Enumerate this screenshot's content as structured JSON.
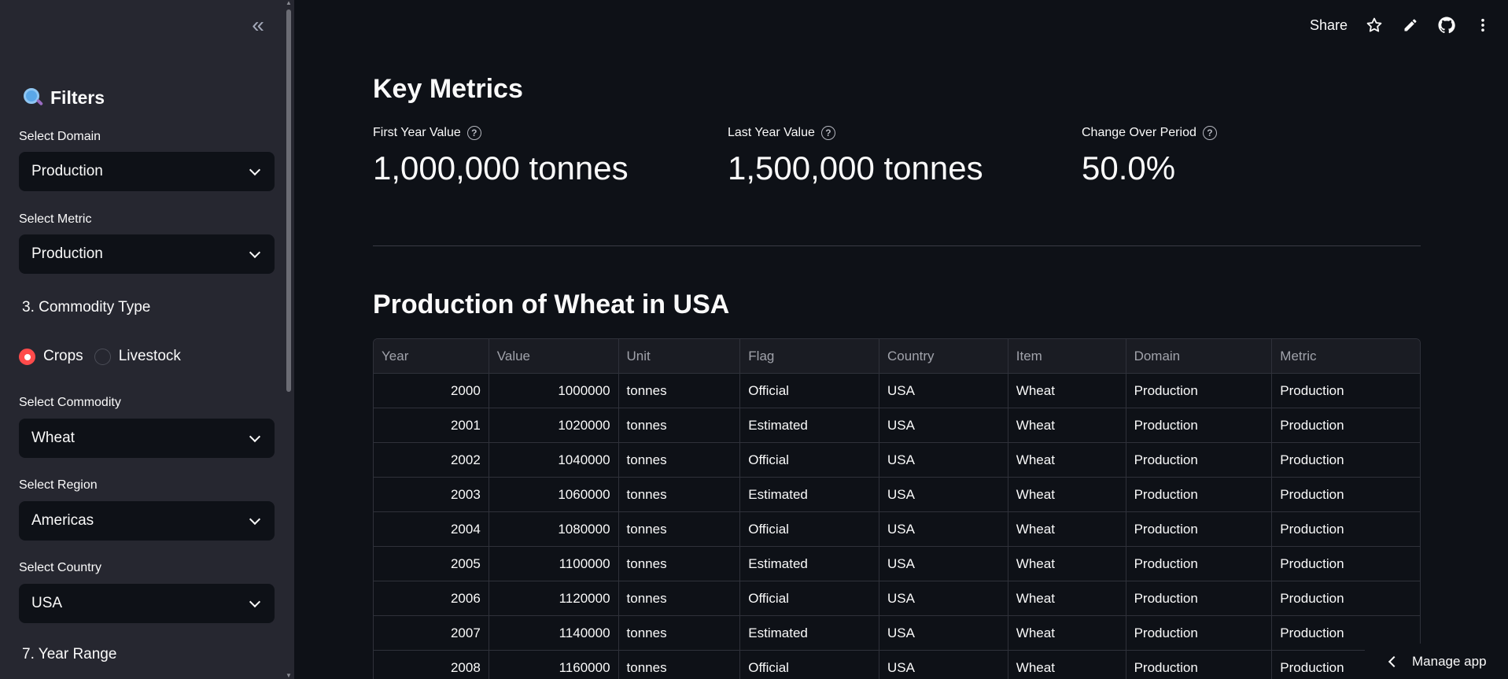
{
  "sidebar": {
    "collapse_glyph": "«",
    "title": "Filters",
    "title_icon": "magnifying-glass-icon",
    "domain": {
      "label": "Select Domain",
      "value": "Production"
    },
    "metric": {
      "label": "Select Metric",
      "value": "Production"
    },
    "commodity_type": {
      "label": "3.  Commodity Type",
      "options": [
        "Crops",
        "Livestock"
      ],
      "selected": "Crops"
    },
    "commodity": {
      "label": "Select Commodity",
      "value": "Wheat"
    },
    "region": {
      "label": "Select Region",
      "value": "Americas"
    },
    "country": {
      "label": "Select Country",
      "value": "USA"
    },
    "year_range": {
      "label": "7.  Year Range"
    }
  },
  "toolbar": {
    "share_label": "Share",
    "icons": [
      "star-icon",
      "pencil-icon",
      "github-icon",
      "more-vertical-icon"
    ]
  },
  "main": {
    "key_metrics_title": "Key Metrics",
    "metrics": [
      {
        "label": "First Year Value",
        "value": "1,000,000 tonnes"
      },
      {
        "label": "Last Year Value",
        "value": "1,500,000 tonnes"
      },
      {
        "label": "Change Over Period",
        "value": "50.0%"
      }
    ],
    "table_title": "Production of Wheat in USA",
    "table": {
      "columns": [
        "Year",
        "Value",
        "Unit",
        "Flag",
        "Country",
        "Item",
        "Domain",
        "Metric"
      ],
      "rows": [
        [
          "2000",
          "1000000",
          "tonnes",
          "Official",
          "USA",
          "Wheat",
          "Production",
          "Production"
        ],
        [
          "2001",
          "1020000",
          "tonnes",
          "Estimated",
          "USA",
          "Wheat",
          "Production",
          "Production"
        ],
        [
          "2002",
          "1040000",
          "tonnes",
          "Official",
          "USA",
          "Wheat",
          "Production",
          "Production"
        ],
        [
          "2003",
          "1060000",
          "tonnes",
          "Estimated",
          "USA",
          "Wheat",
          "Production",
          "Production"
        ],
        [
          "2004",
          "1080000",
          "tonnes",
          "Official",
          "USA",
          "Wheat",
          "Production",
          "Production"
        ],
        [
          "2005",
          "1100000",
          "tonnes",
          "Estimated",
          "USA",
          "Wheat",
          "Production",
          "Production"
        ],
        [
          "2006",
          "1120000",
          "tonnes",
          "Official",
          "USA",
          "Wheat",
          "Production",
          "Production"
        ],
        [
          "2007",
          "1140000",
          "tonnes",
          "Estimated",
          "USA",
          "Wheat",
          "Production",
          "Production"
        ],
        [
          "2008",
          "1160000",
          "tonnes",
          "Official",
          "USA",
          "Wheat",
          "Production",
          "Production"
        ]
      ]
    }
  },
  "manage_app_label": "Manage app",
  "colors": {
    "accent": "#ff4b4b",
    "sidebar_bg": "#262730",
    "main_bg": "#0e1117"
  }
}
